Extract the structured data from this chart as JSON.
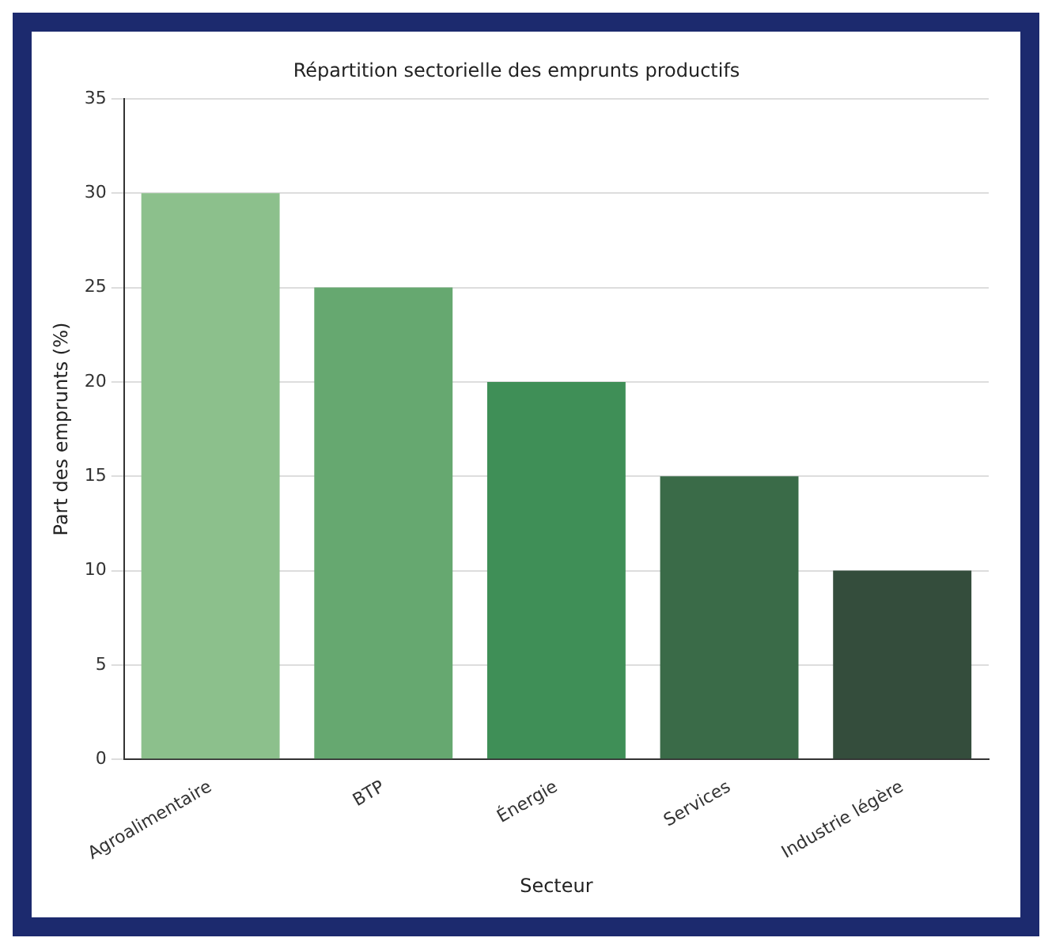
{
  "chart_data": {
    "type": "bar",
    "title": "Répartition sectorielle des emprunts productifs",
    "xlabel": "Secteur",
    "ylabel": "Part des emprunts (%)",
    "categories": [
      "Agroalimentaire",
      "BTP",
      "Énergie",
      "Services",
      "Industrie légère"
    ],
    "values": [
      30,
      25,
      20,
      15,
      10
    ],
    "colors": [
      "#8cc08c",
      "#66a870",
      "#3f8f57",
      "#3a6b48",
      "#344d3c"
    ],
    "ylim": [
      0,
      35
    ],
    "yticks": [
      0,
      5,
      10,
      15,
      20,
      25,
      30,
      35
    ],
    "grid": "y",
    "legend": false
  }
}
